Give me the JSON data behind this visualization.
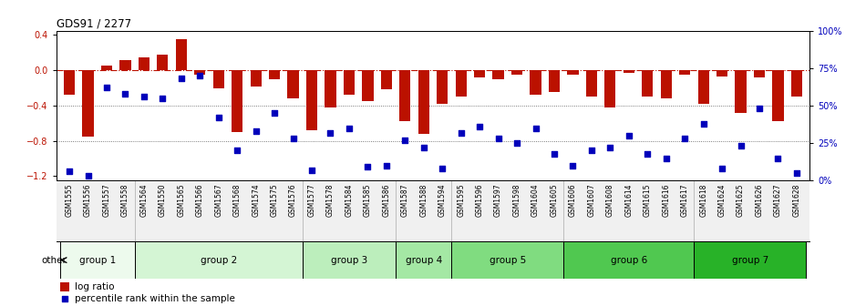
{
  "title": "GDS91 / 2277",
  "samples": [
    "GSM1555",
    "GSM1556",
    "GSM1557",
    "GSM1558",
    "GSM1564",
    "GSM1550",
    "GSM1565",
    "GSM1566",
    "GSM1567",
    "GSM1568",
    "GSM1574",
    "GSM1575",
    "GSM1576",
    "GSM1577",
    "GSM1578",
    "GSM1584",
    "GSM1585",
    "GSM1586",
    "GSM1587",
    "GSM1588",
    "GSM1594",
    "GSM1595",
    "GSM1596",
    "GSM1597",
    "GSM1598",
    "GSM1604",
    "GSM1605",
    "GSM1606",
    "GSM1607",
    "GSM1608",
    "GSM1614",
    "GSM1615",
    "GSM1616",
    "GSM1617",
    "GSM1618",
    "GSM1624",
    "GSM1625",
    "GSM1626",
    "GSM1627",
    "GSM1628"
  ],
  "log_ratio": [
    -0.28,
    -0.75,
    0.05,
    0.12,
    0.15,
    0.18,
    0.35,
    -0.05,
    -0.2,
    -0.7,
    -0.18,
    -0.1,
    -0.32,
    -0.68,
    -0.42,
    -0.28,
    -0.35,
    -0.22,
    -0.58,
    -0.72,
    -0.38,
    -0.3,
    -0.08,
    -0.1,
    -0.05,
    -0.28,
    -0.25,
    -0.05,
    -0.3,
    -0.42,
    -0.03,
    -0.3,
    -0.32,
    -0.05,
    -0.38,
    -0.07,
    -0.48,
    -0.08,
    -0.58,
    -0.3
  ],
  "percentile_rank": [
    6,
    3,
    62,
    58,
    56,
    55,
    68,
    70,
    42,
    20,
    33,
    45,
    28,
    7,
    32,
    35,
    9,
    10,
    27,
    22,
    8,
    32,
    36,
    28,
    25,
    35,
    18,
    10,
    20,
    22,
    30,
    18,
    15,
    28,
    38,
    8,
    23,
    48,
    15,
    5
  ],
  "groups": [
    {
      "name": "group 1",
      "start": 0,
      "end": 4,
      "color": "#e8fae8"
    },
    {
      "name": "group 2",
      "start": 4,
      "end": 13,
      "color": "#d0f0d0"
    },
    {
      "name": "group 3",
      "start": 13,
      "end": 18,
      "color": "#b8e8b8"
    },
    {
      "name": "group 4",
      "start": 18,
      "end": 21,
      "color": "#a0e0a0"
    },
    {
      "name": "group 5",
      "start": 21,
      "end": 27,
      "color": "#80d880"
    },
    {
      "name": "group 6",
      "start": 27,
      "end": 34,
      "color": "#50c850"
    },
    {
      "name": "group 7",
      "start": 34,
      "end": 40,
      "color": "#30b830"
    }
  ],
  "ylim_lo": -1.25,
  "ylim_hi": 0.45,
  "yticks_left": [
    -1.2,
    -0.8,
    -0.4,
    0.0,
    0.4
  ],
  "yticks_right_pct": [
    0,
    25,
    50,
    75,
    100
  ],
  "bar_color": "#bb1100",
  "dot_color": "#0000bb",
  "background_color": "#ffffff"
}
